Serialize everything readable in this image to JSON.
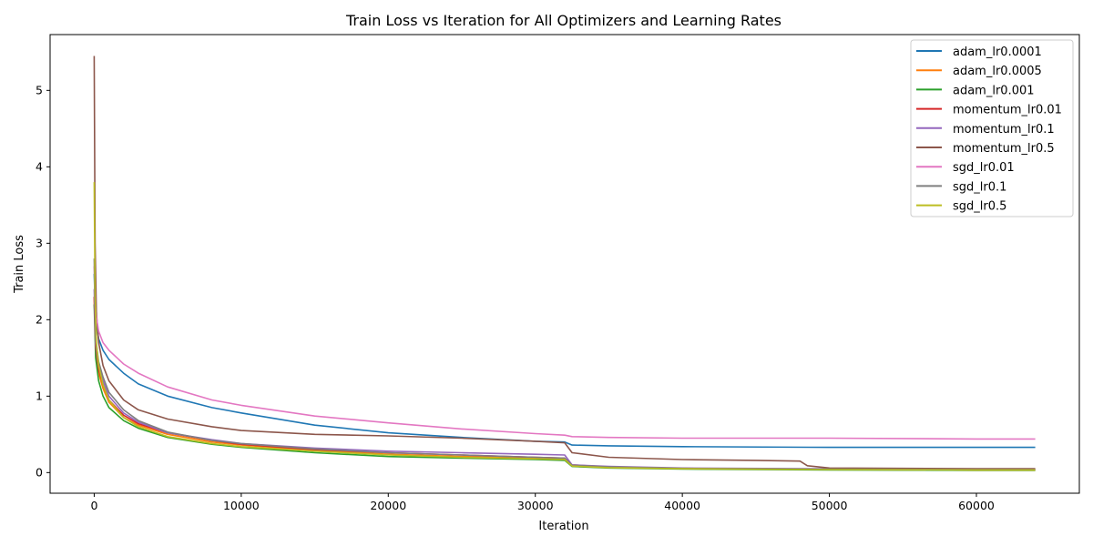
{
  "chart_data": {
    "type": "line",
    "title": "Train Loss vs Iteration for All Optimizers and Learning Rates",
    "xlabel": "Iteration",
    "ylabel": "Train Loss",
    "xlim": [
      -3000,
      67000
    ],
    "ylim": [
      -0.27,
      5.73
    ],
    "xticks": [
      0,
      10000,
      20000,
      30000,
      40000,
      50000,
      60000
    ],
    "xtick_labels": [
      "0",
      "10000",
      "20000",
      "30000",
      "40000",
      "50000",
      "60000"
    ],
    "yticks": [
      0,
      1,
      2,
      3,
      4,
      5
    ],
    "ytick_labels": [
      "0",
      "1",
      "2",
      "3",
      "4",
      "5"
    ],
    "grid": false,
    "legend_position": "top-right",
    "series": [
      {
        "name": "adam_lr0.0001",
        "color": "#1f77b4",
        "x": [
          0,
          100,
          300,
          600,
          1000,
          2000,
          3000,
          5000,
          8000,
          10000,
          15000,
          20000,
          25000,
          30000,
          32000,
          32500,
          35000,
          40000,
          50000,
          60000,
          64000
        ],
        "y": [
          2.6,
          2.0,
          1.75,
          1.6,
          1.48,
          1.3,
          1.16,
          1.0,
          0.85,
          0.78,
          0.62,
          0.52,
          0.46,
          0.41,
          0.4,
          0.36,
          0.35,
          0.34,
          0.33,
          0.33,
          0.33
        ]
      },
      {
        "name": "adam_lr0.0005",
        "color": "#ff7f0e",
        "x": [
          0,
          100,
          300,
          600,
          1000,
          2000,
          3000,
          5000,
          8000,
          10000,
          15000,
          20000,
          25000,
          30000,
          32000,
          32500,
          35000,
          40000,
          50000,
          60000,
          64000
        ],
        "y": [
          2.3,
          1.6,
          1.3,
          1.1,
          0.92,
          0.72,
          0.62,
          0.5,
          0.4,
          0.36,
          0.29,
          0.24,
          0.21,
          0.19,
          0.18,
          0.09,
          0.07,
          0.05,
          0.04,
          0.03,
          0.03
        ]
      },
      {
        "name": "adam_lr0.001",
        "color": "#2ca02c",
        "x": [
          0,
          100,
          300,
          600,
          1000,
          2000,
          3000,
          5000,
          8000,
          10000,
          15000,
          20000,
          25000,
          30000,
          32000,
          32500,
          35000,
          40000,
          50000,
          60000,
          64000
        ],
        "y": [
          2.2,
          1.5,
          1.2,
          1.0,
          0.85,
          0.68,
          0.58,
          0.46,
          0.37,
          0.33,
          0.26,
          0.21,
          0.19,
          0.17,
          0.16,
          0.08,
          0.06,
          0.045,
          0.035,
          0.03,
          0.03
        ]
      },
      {
        "name": "momentum_lr0.01",
        "color": "#d62728",
        "x": [
          0,
          100,
          300,
          600,
          1000,
          2000,
          3000,
          5000,
          8000,
          10000,
          15000,
          20000,
          25000,
          30000,
          32000,
          32500,
          35000,
          40000,
          50000,
          60000,
          64000
        ],
        "y": [
          2.3,
          1.65,
          1.35,
          1.15,
          0.95,
          0.75,
          0.64,
          0.52,
          0.42,
          0.37,
          0.3,
          0.26,
          0.23,
          0.2,
          0.19,
          0.1,
          0.075,
          0.055,
          0.045,
          0.04,
          0.04
        ]
      },
      {
        "name": "momentum_lr0.1",
        "color": "#9467bd",
        "x": [
          0,
          100,
          300,
          600,
          1000,
          2000,
          3000,
          5000,
          8000,
          10000,
          15000,
          20000,
          25000,
          30000,
          32000,
          32500,
          35000,
          40000,
          50000,
          60000,
          64000
        ],
        "y": [
          2.4,
          1.7,
          1.4,
          1.2,
          1.0,
          0.78,
          0.66,
          0.52,
          0.43,
          0.38,
          0.32,
          0.28,
          0.26,
          0.24,
          0.23,
          0.1,
          0.08,
          0.06,
          0.05,
          0.045,
          0.045
        ]
      },
      {
        "name": "momentum_lr0.5",
        "color": "#8c564b",
        "x": [
          0,
          60,
          150,
          300,
          600,
          1000,
          2000,
          3000,
          5000,
          8000,
          10000,
          15000,
          20000,
          25000,
          30000,
          32000,
          32500,
          35000,
          40000,
          45000,
          48000,
          48500,
          50000,
          60000,
          64000
        ],
        "y": [
          5.45,
          3.0,
          2.1,
          1.7,
          1.4,
          1.2,
          0.95,
          0.82,
          0.7,
          0.6,
          0.55,
          0.5,
          0.48,
          0.45,
          0.41,
          0.39,
          0.26,
          0.2,
          0.17,
          0.16,
          0.15,
          0.09,
          0.06,
          0.05,
          0.05
        ]
      },
      {
        "name": "sgd_lr0.01",
        "color": "#e377c2",
        "x": [
          0,
          100,
          300,
          600,
          1000,
          2000,
          3000,
          5000,
          8000,
          10000,
          15000,
          20000,
          25000,
          30000,
          32000,
          32500,
          35000,
          40000,
          50000,
          60000,
          64000
        ],
        "y": [
          2.7,
          2.1,
          1.85,
          1.7,
          1.6,
          1.42,
          1.3,
          1.12,
          0.95,
          0.88,
          0.74,
          0.65,
          0.57,
          0.51,
          0.49,
          0.47,
          0.46,
          0.45,
          0.45,
          0.44,
          0.44
        ]
      },
      {
        "name": "sgd_lr0.1",
        "color": "#7f7f7f",
        "x": [
          0,
          100,
          300,
          600,
          1000,
          2000,
          3000,
          5000,
          8000,
          10000,
          15000,
          20000,
          25000,
          30000,
          32000,
          32500,
          35000,
          40000,
          50000,
          60000,
          64000
        ],
        "y": [
          2.8,
          1.75,
          1.45,
          1.25,
          1.05,
          0.82,
          0.68,
          0.53,
          0.42,
          0.38,
          0.31,
          0.26,
          0.23,
          0.2,
          0.19,
          0.095,
          0.075,
          0.055,
          0.045,
          0.04,
          0.04
        ]
      },
      {
        "name": "sgd_lr0.5",
        "color": "#bcbd22",
        "x": [
          0,
          60,
          150,
          300,
          600,
          1000,
          2000,
          3000,
          5000,
          8000,
          10000,
          15000,
          20000,
          25000,
          30000,
          32000,
          32500,
          35000,
          40000,
          50000,
          60000,
          64000
        ],
        "y": [
          3.8,
          2.3,
          1.7,
          1.4,
          1.15,
          0.95,
          0.72,
          0.6,
          0.47,
          0.38,
          0.34,
          0.28,
          0.23,
          0.2,
          0.18,
          0.17,
          0.085,
          0.065,
          0.05,
          0.04,
          0.035,
          0.035
        ]
      }
    ]
  }
}
